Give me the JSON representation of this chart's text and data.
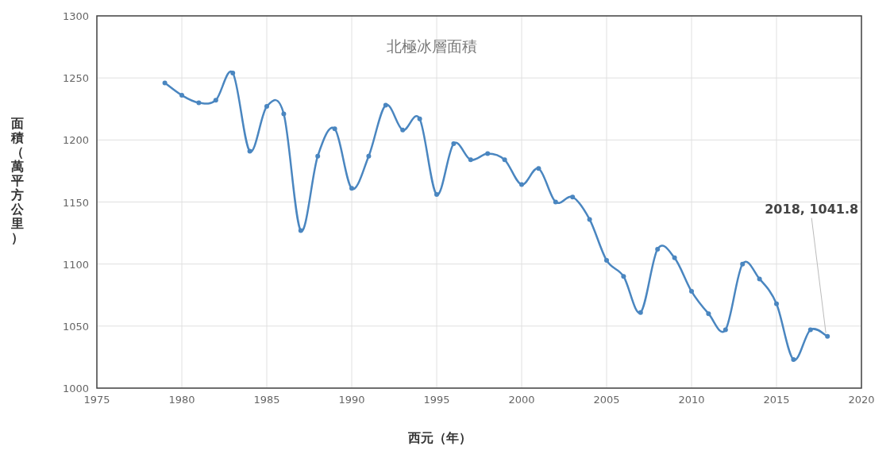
{
  "chart_data": {
    "type": "line",
    "title": "北極冰層面積",
    "xlabel": "西元（年）",
    "ylabel": "面積（萬平方公里）",
    "x": [
      1979,
      1980,
      1981,
      1982,
      1983,
      1984,
      1985,
      1986,
      1987,
      1988,
      1989,
      1990,
      1991,
      1992,
      1993,
      1994,
      1995,
      1996,
      1997,
      1998,
      1999,
      2000,
      2001,
      2002,
      2003,
      2004,
      2005,
      2006,
      2007,
      2008,
      2009,
      2010,
      2011,
      2012,
      2013,
      2014,
      2015,
      2016,
      2017,
      2018
    ],
    "series": [
      {
        "color": "#4a86c0",
        "values": [
          1246,
          1236,
          1230,
          1232,
          1254,
          1191,
          1227,
          1221,
          1127,
          1187,
          1209,
          1161,
          1187,
          1228,
          1208,
          1217,
          1156,
          1197,
          1184,
          1189,
          1184,
          1164,
          1177,
          1150,
          1154,
          1136,
          1103,
          1090,
          1061,
          1112,
          1105,
          1078,
          1060,
          1047,
          1100,
          1088,
          1068,
          1023,
          1047,
          1041.8
        ]
      }
    ],
    "xlim": [
      1975,
      2020
    ],
    "xticks": [
      1975,
      1980,
      1985,
      1990,
      1995,
      2000,
      2005,
      2010,
      2015,
      2020
    ],
    "ylim": [
      1000,
      1300
    ],
    "yticks": [
      1000,
      1050,
      1100,
      1150,
      1200,
      1250,
      1300
    ],
    "grid": true,
    "marker": "circle",
    "line_style": "solid",
    "annotations": [
      {
        "text": "2018, 1041.8",
        "x": 2018,
        "y": 1041.8
      }
    ]
  }
}
